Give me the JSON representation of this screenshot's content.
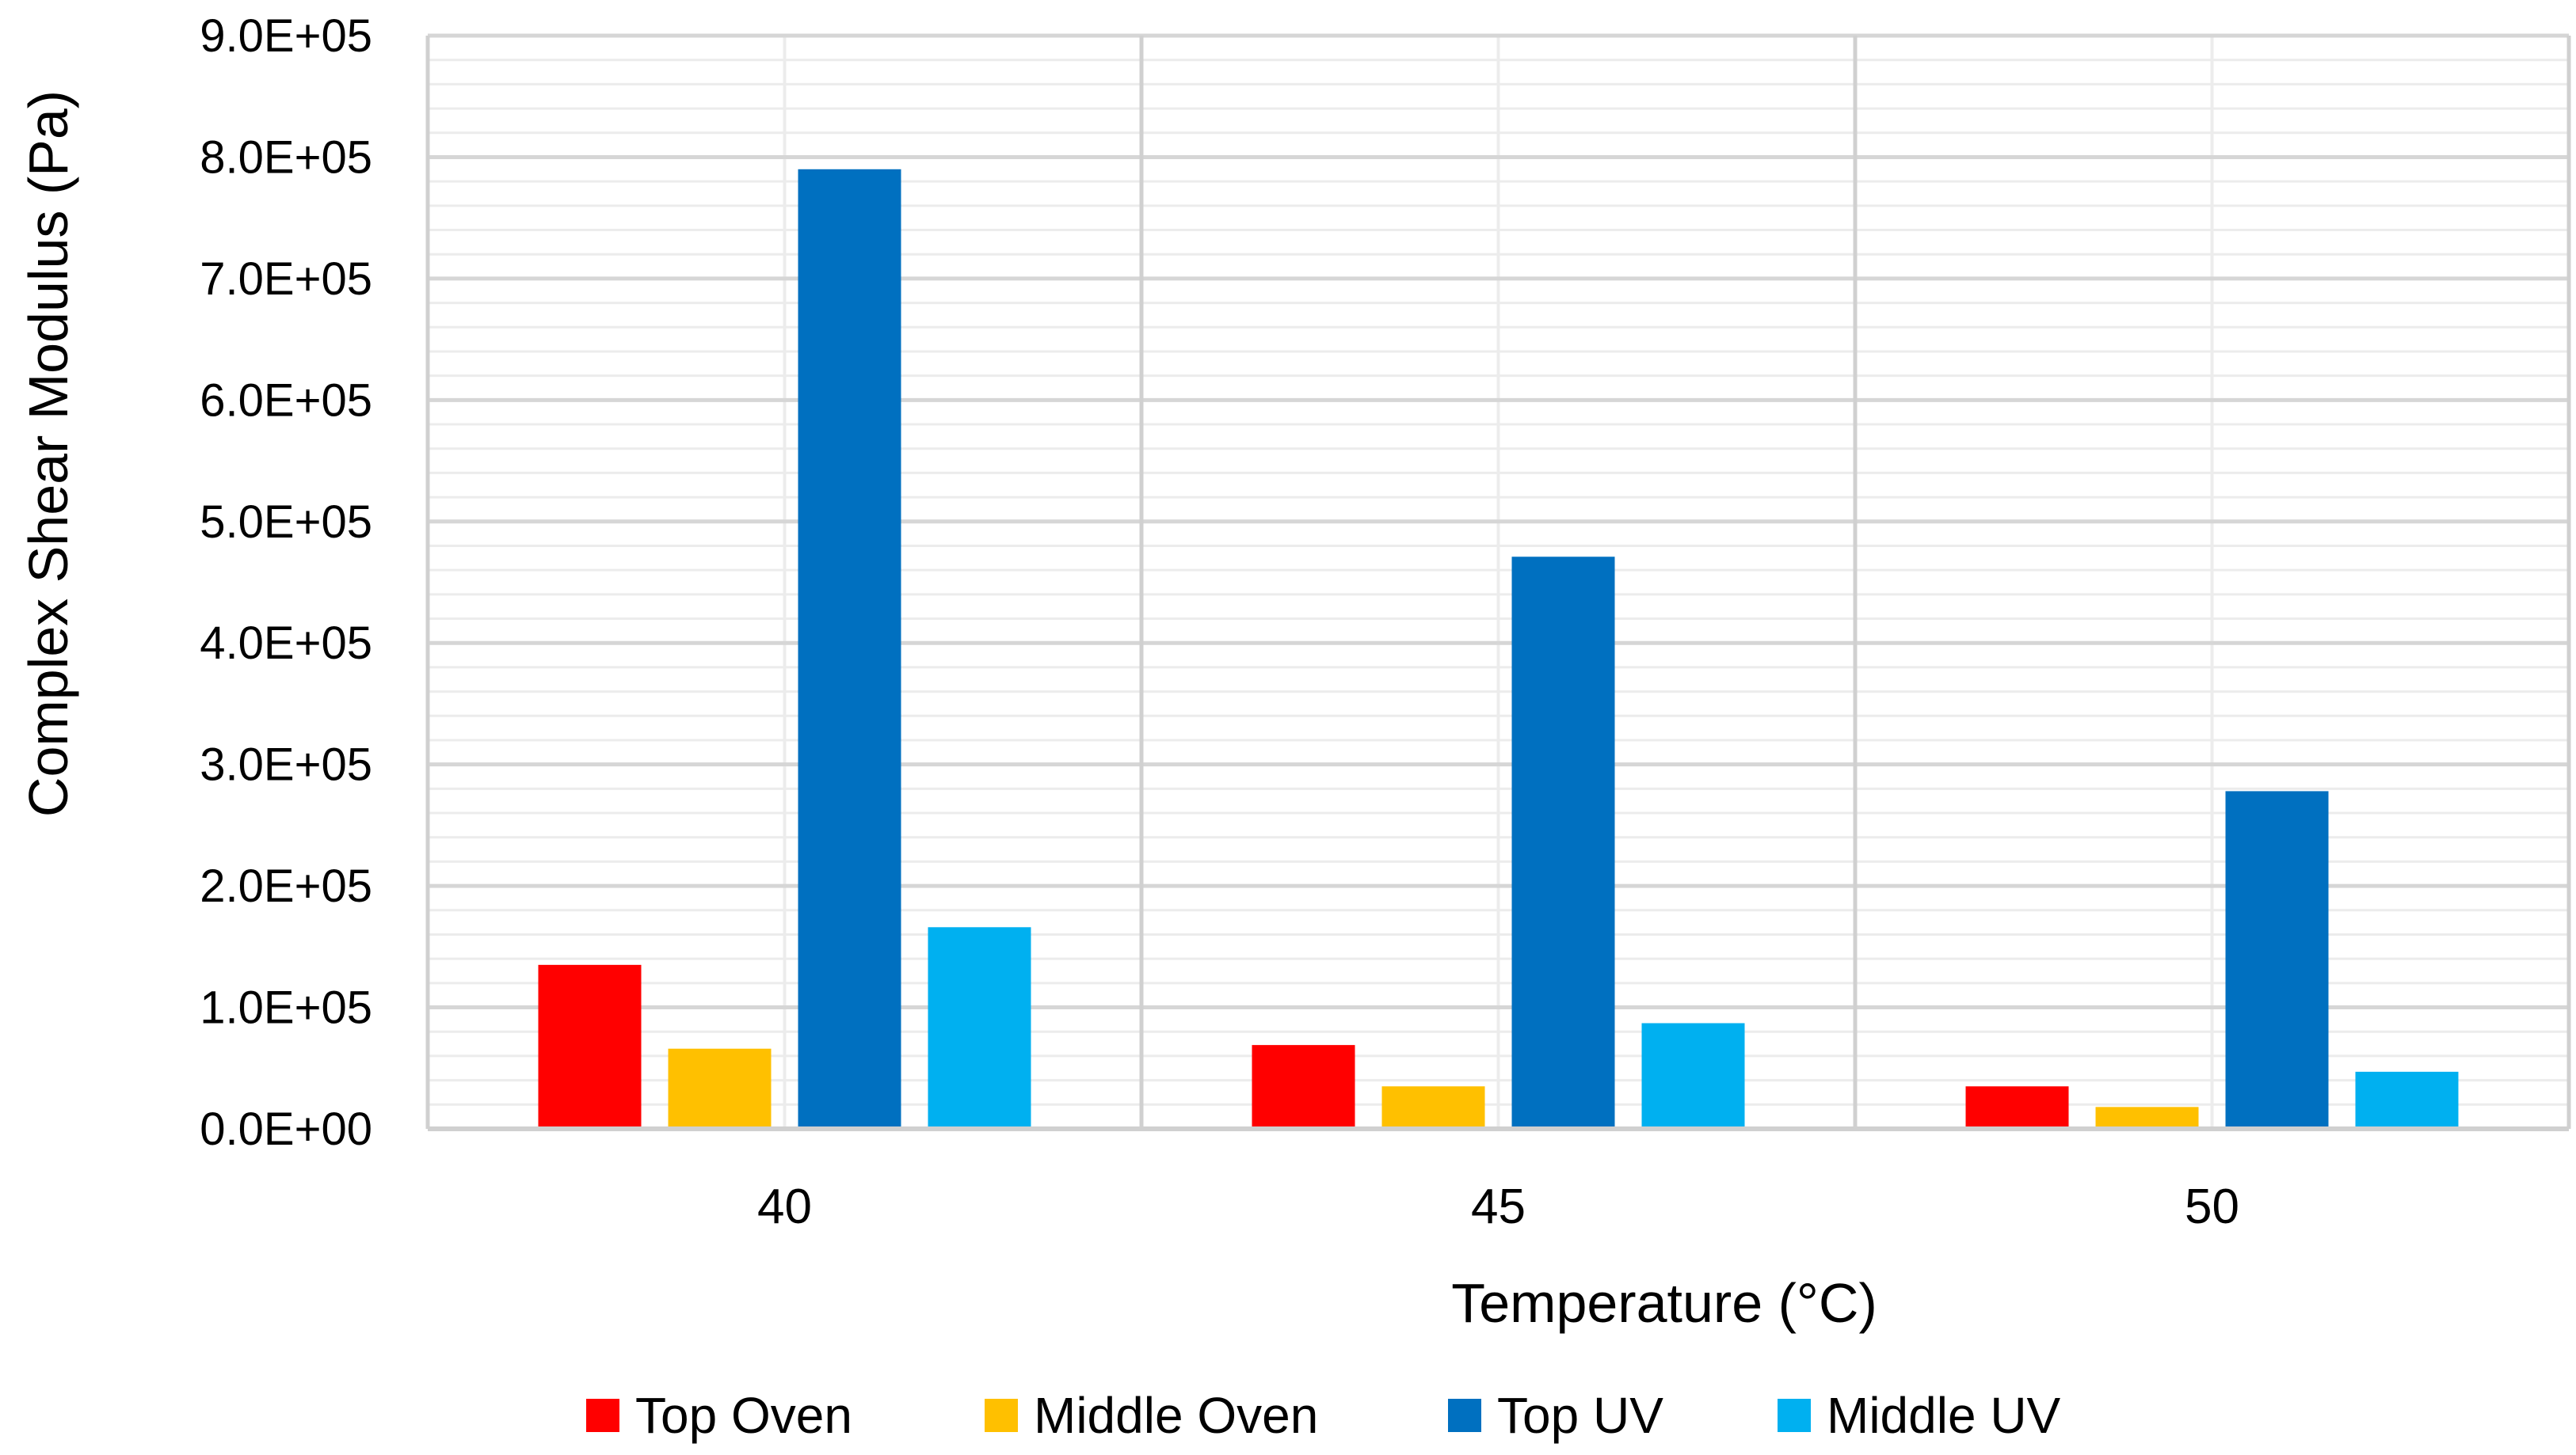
{
  "chart_data": {
    "type": "bar",
    "title": "",
    "xlabel": "Temperature (°C)",
    "ylabel": "Complex Shear Modulus (Pa)",
    "categories": [
      "40",
      "45",
      "50"
    ],
    "ylim": [
      0,
      900000
    ],
    "yticks": [
      0,
      100000,
      200000,
      300000,
      400000,
      500000,
      600000,
      700000,
      800000,
      900000
    ],
    "ytick_labels": [
      "0.0E+00",
      "1.0E+05",
      "2.0E+05",
      "3.0E+05",
      "4.0E+05",
      "5.0E+05",
      "6.0E+05",
      "7.0E+05",
      "8.0E+05",
      "9.0E+05"
    ],
    "grid": true,
    "legend_position": "bottom",
    "series": [
      {
        "name": "Top Oven",
        "color": "#ff0000",
        "values": [
          135000,
          69000,
          35000
        ]
      },
      {
        "name": "Middle Oven",
        "color": "#ffc000",
        "values": [
          66000,
          35000,
          18000
        ]
      },
      {
        "name": "Top UV",
        "color": "#0070c0",
        "values": [
          790000,
          471000,
          278000
        ]
      },
      {
        "name": "Middle UV",
        "color": "#00b0f0",
        "values": [
          166000,
          87000,
          47000
        ]
      }
    ]
  }
}
